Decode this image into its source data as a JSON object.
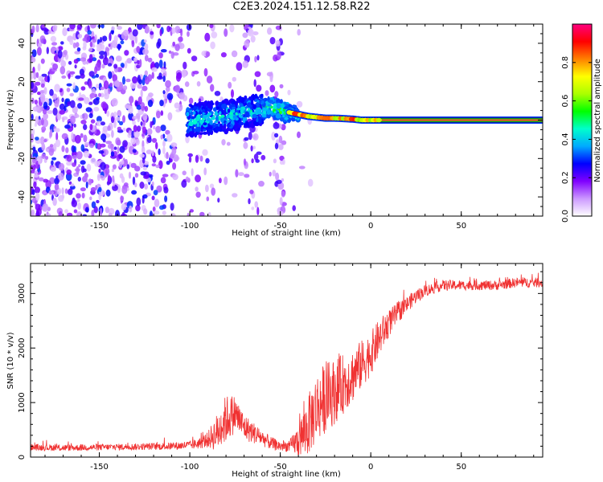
{
  "title": "C2E3.2024.151.12.58.R22",
  "colors": {
    "snr_line": "#f03232",
    "carrier_line": "#ff3030",
    "axis": "#000000",
    "background": "#ffffff"
  },
  "chart_data": [
    {
      "type": "heatmap",
      "name": "spectrogram",
      "xlabel": "Height of straight line (km)",
      "ylabel": "Frequency (Hz)",
      "xlim": [
        -188,
        95
      ],
      "ylim": [
        -50,
        50
      ],
      "xticks": [
        -150,
        -100,
        -50,
        0,
        50
      ],
      "xtick_labels": [
        "-150",
        "-100",
        "-50",
        "0",
        "50"
      ],
      "yticks": [
        -40,
        -20,
        0,
        20,
        40
      ],
      "ytick_labels": [
        "-40",
        "-20",
        "0",
        "20",
        "40"
      ],
      "grid": false,
      "carrier": {
        "description": "strong carrier line at 0 Hz",
        "x": [
          -100,
          -90,
          -80,
          -70,
          -60,
          -55,
          -50,
          -45,
          -40,
          -35,
          -30,
          -25,
          -20,
          -15,
          -10,
          -5,
          0,
          10,
          95
        ],
        "freq": [
          0,
          1,
          2,
          4,
          6,
          7,
          5,
          4,
          3,
          2,
          1.5,
          1,
          1,
          0.8,
          0.5,
          0,
          0,
          0,
          0
        ]
      },
      "colorbar": {
        "label": "Normalized spectral amplitude",
        "range": [
          0.0,
          1.0
        ],
        "ticks": [
          0.0,
          0.2,
          0.4,
          0.6,
          0.8
        ],
        "tick_labels": [
          "0.0",
          "0.2",
          "0.4",
          "0.6",
          "0.8"
        ],
        "colormap": [
          "#ffffff",
          "#cc99ff",
          "#8000ff",
          "#0000ff",
          "#00aaff",
          "#00ffcc",
          "#00ff00",
          "#aaff00",
          "#ffff00",
          "#ff8000",
          "#ff0000",
          "#ff0080"
        ]
      }
    },
    {
      "type": "line",
      "name": "snr",
      "xlabel": "Height of straight line (km)",
      "ylabel": "SNR (10 * v/v)",
      "xlim": [
        -188,
        95
      ],
      "ylim": [
        0,
        3550
      ],
      "xticks": [
        -150,
        -100,
        -50,
        0,
        50
      ],
      "xtick_labels": [
        "-150",
        "-100",
        "-50",
        "0",
        "50"
      ],
      "yticks": [
        0,
        1000,
        2000,
        3000
      ],
      "ytick_labels": [
        "0",
        "1000",
        "2000",
        "3000"
      ],
      "grid": false,
      "series": [
        {
          "name": "SNR",
          "x": [
            -188,
            -170,
            -150,
            -130,
            -110,
            -100,
            -95,
            -90,
            -85,
            -80,
            -75,
            -70,
            -65,
            -60,
            -55,
            -50,
            -45,
            -40,
            -35,
            -30,
            -25,
            -20,
            -15,
            -10,
            -5,
            0,
            5,
            10,
            15,
            20,
            25,
            30,
            35,
            40,
            50,
            60,
            70,
            80,
            95
          ],
          "values": [
            180,
            170,
            180,
            190,
            200,
            220,
            250,
            320,
            450,
            700,
            800,
            550,
            450,
            350,
            250,
            200,
            200,
            300,
            550,
            900,
            1100,
            1200,
            1350,
            1500,
            1700,
            1900,
            2200,
            2450,
            2650,
            2800,
            2950,
            3050,
            3100,
            3150,
            3150,
            3150,
            3150,
            3200,
            3200
          ],
          "noise_amp": [
            60,
            60,
            60,
            60,
            70,
            80,
            100,
            150,
            350,
            450,
            350,
            250,
            200,
            150,
            120,
            100,
            100,
            300,
            550,
            650,
            650,
            600,
            550,
            500,
            450,
            400,
            350,
            250,
            200,
            150,
            130,
            110,
            100,
            100,
            90,
            90,
            90,
            90,
            90
          ]
        }
      ]
    }
  ]
}
